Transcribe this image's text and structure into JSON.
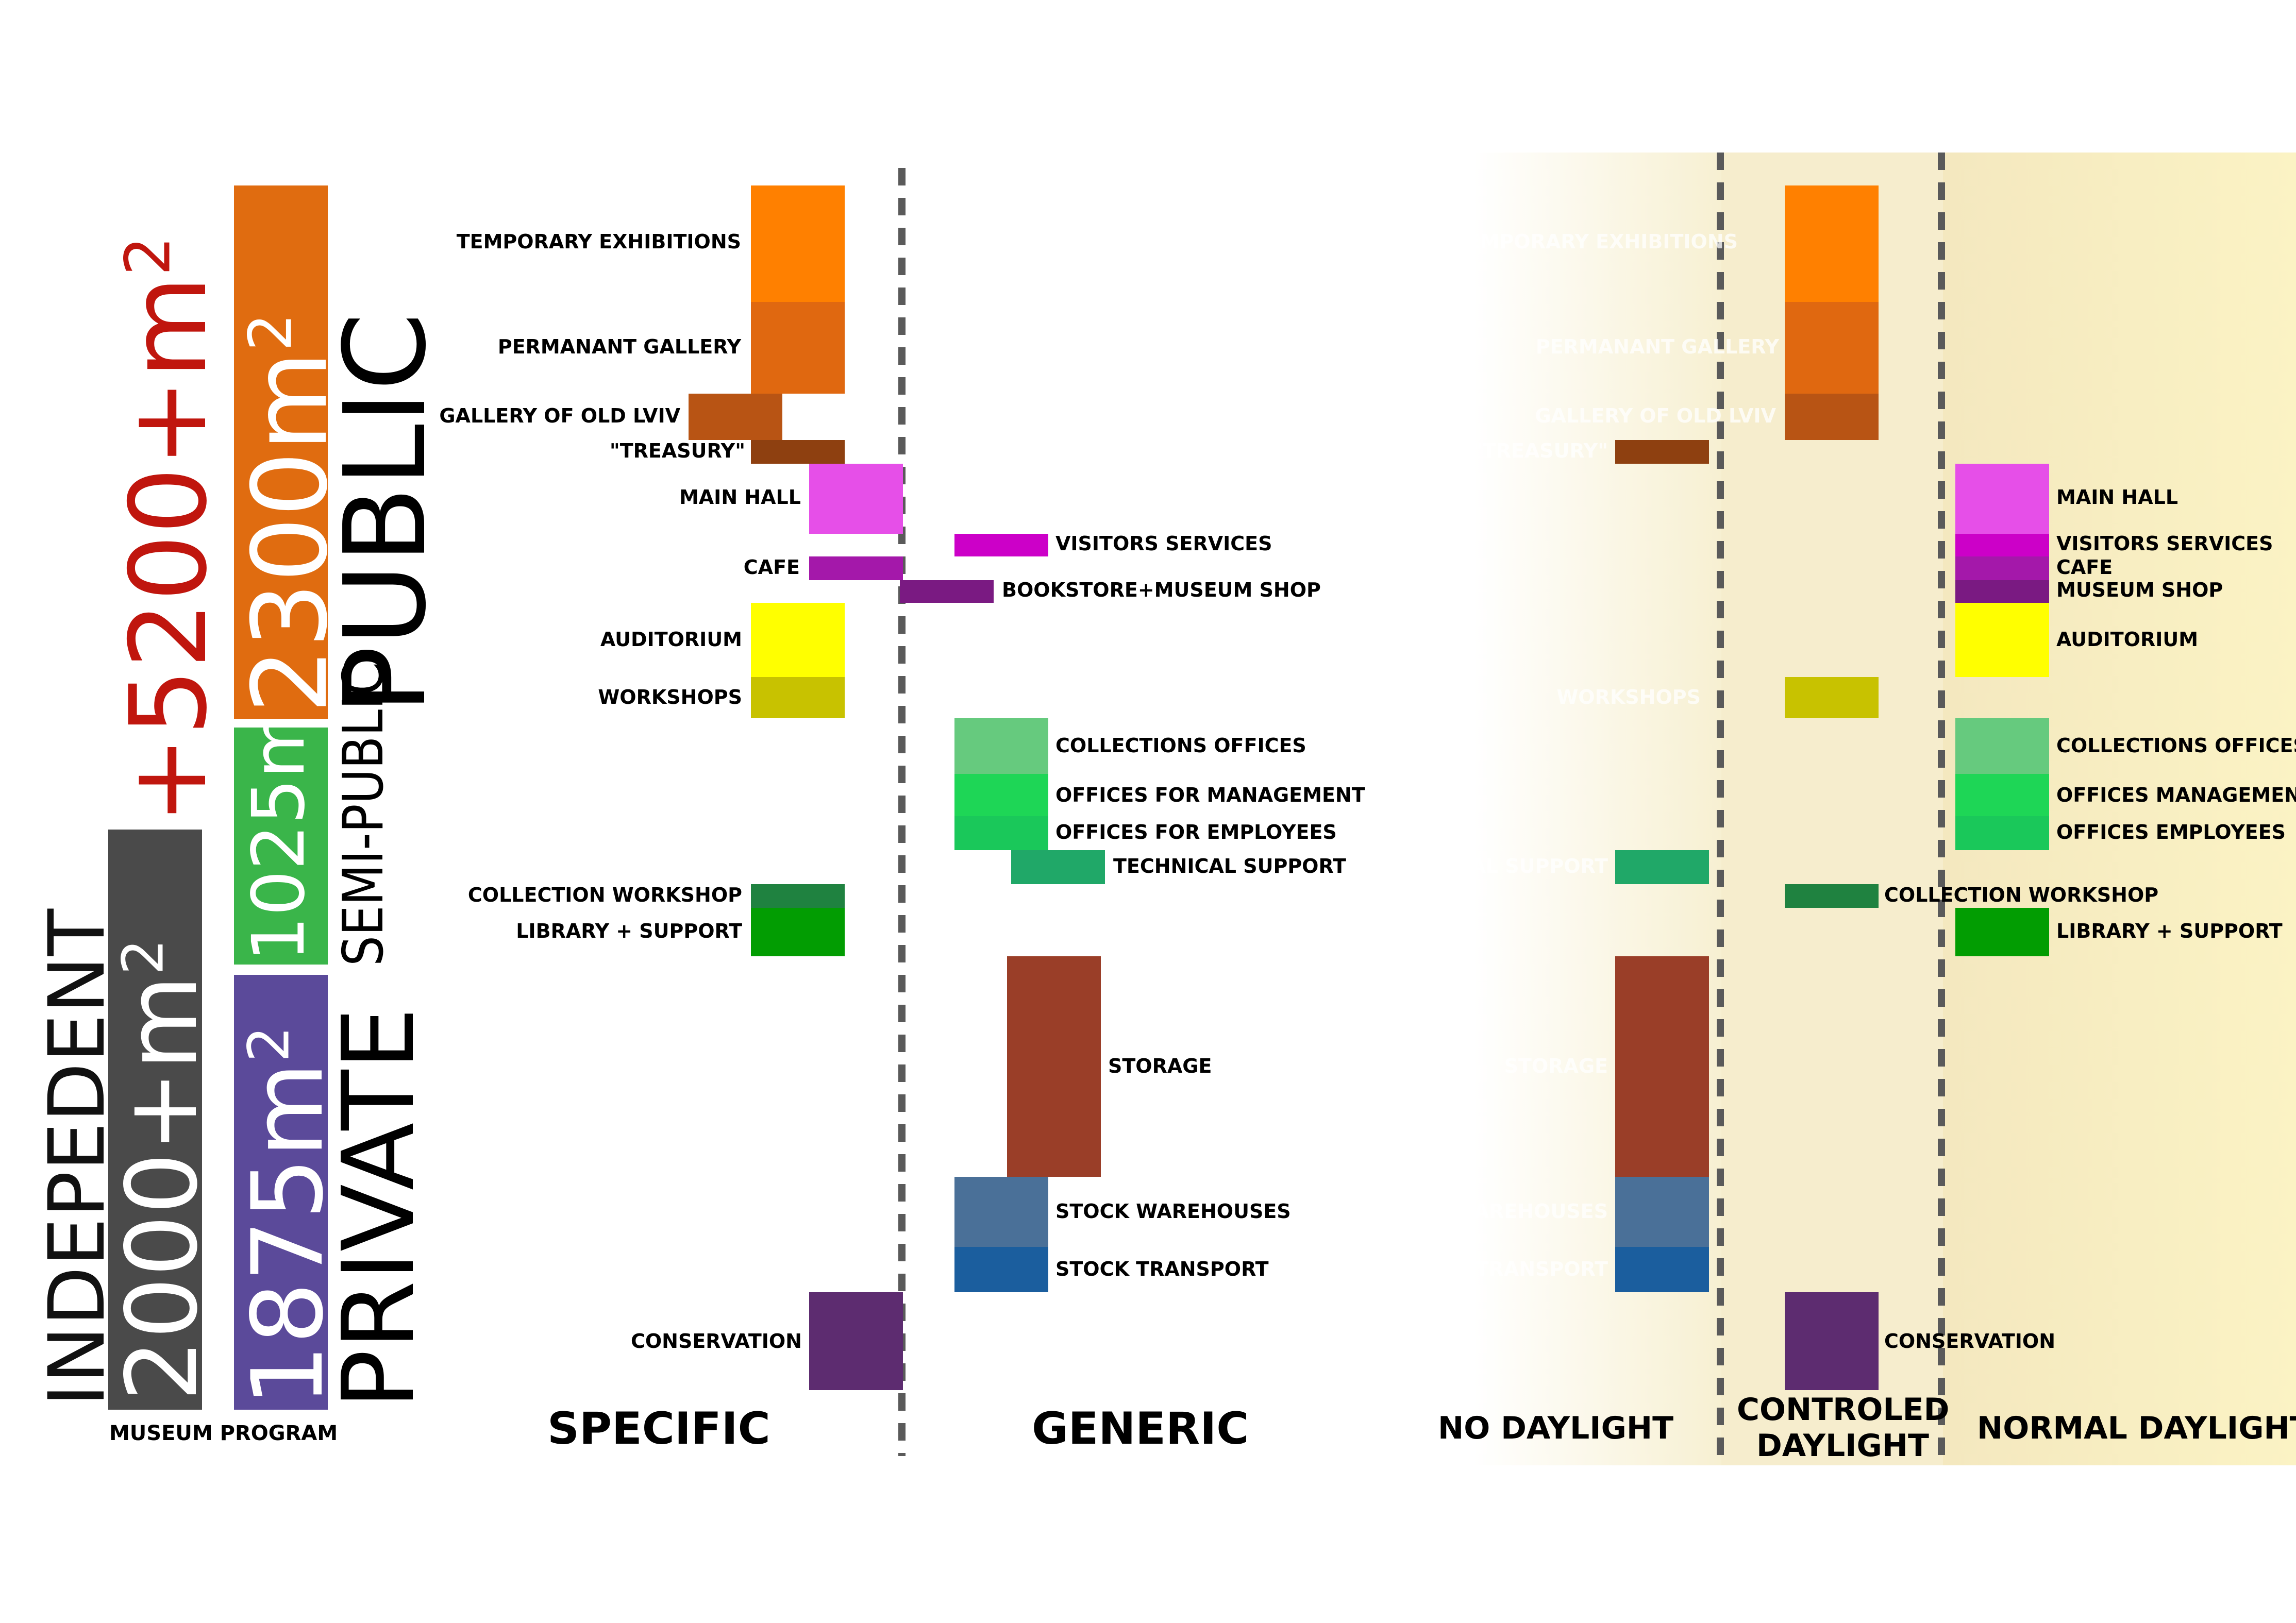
{
  "summary": {
    "independent_label": "INDEPEDENT",
    "independent_area": "2000+m",
    "total_area": "+5200+m",
    "public_area": "2300m",
    "semi_public_area": "1025m",
    "private_area": "1875m",
    "public_label": "PUBLIC",
    "semi_public_label": "SEMI-PUBLIC",
    "private_label": "PRIVATE",
    "superscript": "2",
    "caption": "MUSEUM PROGRAM",
    "colors": {
      "independent": "#4a4a4a",
      "public": "#e06c10",
      "semi_public": "#3ab54a",
      "private": "#5b4a9a",
      "total": "#c0160e"
    }
  },
  "columns": {
    "specific": "SPECIFIC",
    "generic": "GENERIC",
    "no_daylight": "NO DAYLIGHT",
    "controlled_daylight_1": "CONTROLED",
    "controlled_daylight_2": "DAYLIGHT",
    "normal_daylight": "NORMAL DAYLIGHT"
  },
  "specific": [
    {
      "id": "temporary",
      "label": "TEMPORARY EXHIBITIONS",
      "color": "#ff8000"
    },
    {
      "id": "permanent",
      "label": "PERMANANT GALLERY",
      "color": "#e06810"
    },
    {
      "id": "oldlviv",
      "label": "GALLERY OF OLD LVIV",
      "color": "#b85414"
    },
    {
      "id": "treasury",
      "label": "\"TREASURY\"",
      "color": "#8e4010"
    },
    {
      "id": "mainhall",
      "label": "MAIN HALL",
      "color": "#e64fe8"
    },
    {
      "id": "cafe",
      "label": "CAFE",
      "color": "#a418aa"
    },
    {
      "id": "auditorium",
      "label": "AUDITORIUM",
      "color": "#ffff00"
    },
    {
      "id": "workshops",
      "label": "WORKSHOPS",
      "color": "#c8c200"
    },
    {
      "id": "collworkshop",
      "label": "COLLECTION WORKSHOP",
      "color": "#1f8240"
    },
    {
      "id": "library",
      "label": "LIBRARY + SUPPORT",
      "color": "#029d02"
    },
    {
      "id": "conservation",
      "label": "CONSERVATION",
      "color": "#5d2c70"
    }
  ],
  "generic": [
    {
      "id": "visitors",
      "label": "VISITORS SERVICES",
      "color": "#cc00c8"
    },
    {
      "id": "bookstore",
      "label": "BOOKSTORE+MUSEUM SHOP",
      "color": "#7a1a82"
    },
    {
      "id": "colloffices",
      "label": "COLLECTIONS OFFICES",
      "color": "#66ca7e"
    },
    {
      "id": "mgmt",
      "label": "OFFICES FOR MANAGEMENT",
      "color": "#1ed656"
    },
    {
      "id": "employees",
      "label": "OFFICES FOR EMPLOYEES",
      "color": "#1ac85a"
    },
    {
      "id": "tech",
      "label": "TECHNICAL SUPPORT",
      "color": "#20a868"
    },
    {
      "id": "storage",
      "label": "STORAGE",
      "color": "#9a3e28"
    },
    {
      "id": "stockwh",
      "label": "STOCK WAREHOUSES",
      "color": "#4a7098"
    },
    {
      "id": "stocktr",
      "label": "STOCK TRANSPORT",
      "color": "#1b5e9e"
    }
  ],
  "no_daylight_ghost": [
    {
      "id": "g_temp",
      "label": "TEMPORARY EXHIBITIONS"
    },
    {
      "id": "g_perm",
      "label": "PERMANANT GALLERY"
    },
    {
      "id": "g_old",
      "label": "GALLERY OF OLD LVIV"
    },
    {
      "id": "g_treas",
      "label": "\"TREASURY\""
    },
    {
      "id": "g_work",
      "label": "WORKSHOPS"
    },
    {
      "id": "g_tech",
      "label": "TECHNICAL SUPPORT"
    },
    {
      "id": "g_stor",
      "label": "STORAGE"
    },
    {
      "id": "g_stwh",
      "label": "STOCK WAREHOUSES"
    },
    {
      "id": "g_sttr",
      "label": "STOCK TRANSPORT"
    }
  ],
  "controlled": [
    {
      "id": "c_collworkshop",
      "label": "COLLECTION WORKSHOP"
    },
    {
      "id": "c_conservation",
      "label": "CONSERVATION"
    }
  ],
  "normal": [
    {
      "id": "n_mainhall",
      "label": "MAIN HALL",
      "color": "#e64fe8"
    },
    {
      "id": "n_visitors",
      "label": "VISITORS SERVICES",
      "color": "#cc00c8"
    },
    {
      "id": "n_cafe",
      "label": "CAFE",
      "color": "#a418aa"
    },
    {
      "id": "n_shop",
      "label": "MUSEUM SHOP",
      "color": "#7a1a82"
    },
    {
      "id": "n_aud",
      "label": "AUDITORIUM",
      "color": "#ffff00"
    },
    {
      "id": "n_coll",
      "label": "COLLECTIONS OFFICES",
      "color": "#66ca7e"
    },
    {
      "id": "n_mgmt",
      "label": "OFFICES MANAGEMENT",
      "color": "#1ed656"
    },
    {
      "id": "n_emp",
      "label": "OFFICES EMPLOYEES",
      "color": "#1ac85a"
    },
    {
      "id": "n_lib",
      "label": "LIBRARY + SUPPORT",
      "color": "#029d02"
    }
  ]
}
